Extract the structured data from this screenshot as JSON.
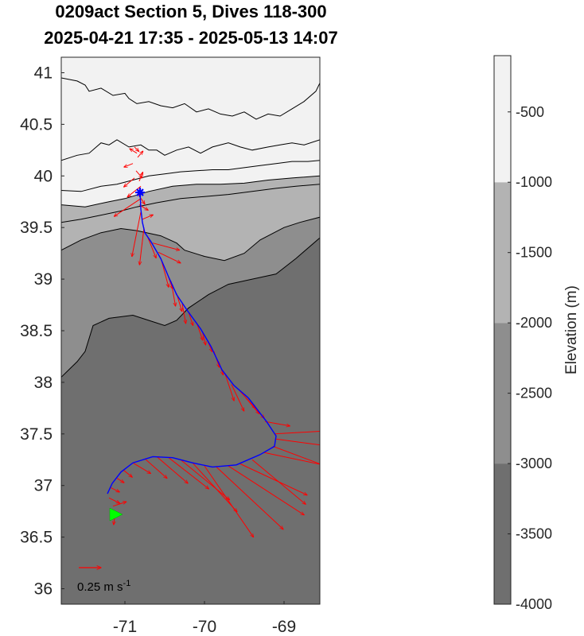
{
  "chart_data": {
    "type": "map",
    "title": "0209act Section 5, Dives 118-300",
    "subtitle": "2025-04-21 17:35 - 2025-05-13 14:07",
    "xlim": [
      -71.8,
      -68.55
    ],
    "ylim": [
      35.85,
      41.15
    ],
    "xticks": [
      -71,
      -70,
      -69
    ],
    "yticks": [
      36,
      36.5,
      37,
      37.5,
      38,
      38.5,
      39,
      39.5,
      40,
      40.5,
      41
    ],
    "colorbar": {
      "label": "Elevation (m)",
      "range": [
        -4000,
        -100
      ],
      "ticks": [
        -4000,
        -3500,
        -3000,
        -2500,
        -2000,
        -1500,
        -1000,
        -500
      ],
      "levels": [
        {
          "from": -4000,
          "to": -3000,
          "color": "#6f6f6f"
        },
        {
          "from": -3000,
          "to": -2000,
          "color": "#8e8e8e"
        },
        {
          "from": -2000,
          "to": -1000,
          "color": "#b3b3b3"
        },
        {
          "from": -1000,
          "to": -100,
          "color": "#f2f2f2"
        }
      ]
    },
    "depth_bands": [
      {
        "name": "-1000",
        "color": "#b3b3b3",
        "boundary": [
          [
            -71.8,
            39.72
          ],
          [
            -71.5,
            39.7
          ],
          [
            -71.2,
            39.75
          ],
          [
            -71,
            39.78
          ],
          [
            -70.7,
            39.85
          ],
          [
            -70.4,
            39.9
          ],
          [
            -70.1,
            39.92
          ],
          [
            -69.8,
            39.92
          ],
          [
            -69.5,
            39.93
          ],
          [
            -69.2,
            39.96
          ],
          [
            -68.9,
            39.98
          ],
          [
            -68.55,
            40.0
          ]
        ]
      },
      {
        "name": "-2000",
        "color": "#8e8e8e",
        "boundary": [
          [
            -71.8,
            39.28
          ],
          [
            -71.55,
            39.38
          ],
          [
            -71.3,
            39.45
          ],
          [
            -71.05,
            39.49
          ],
          [
            -70.85,
            39.47
          ],
          [
            -70.55,
            39.42
          ],
          [
            -70.35,
            39.35
          ],
          [
            -70.25,
            39.28
          ],
          [
            -70.0,
            39.22
          ],
          [
            -69.75,
            39.18
          ],
          [
            -69.5,
            39.25
          ],
          [
            -69.3,
            39.38
          ],
          [
            -69.0,
            39.5
          ],
          [
            -68.8,
            39.55
          ],
          [
            -68.55,
            39.6
          ]
        ]
      },
      {
        "name": "-3000",
        "color": "#6f6f6f",
        "boundary": [
          [
            -71.8,
            38.05
          ],
          [
            -71.6,
            38.2
          ],
          [
            -71.5,
            38.3
          ],
          [
            -71.4,
            38.55
          ],
          [
            -71.2,
            38.62
          ],
          [
            -70.9,
            38.65
          ],
          [
            -70.7,
            38.6
          ],
          [
            -70.5,
            38.55
          ],
          [
            -70.35,
            38.6
          ],
          [
            -70.2,
            38.72
          ],
          [
            -69.95,
            38.85
          ],
          [
            -69.7,
            38.95
          ],
          [
            -69.4,
            39.0
          ],
          [
            -69.1,
            39.05
          ],
          [
            -68.85,
            39.2
          ],
          [
            -68.55,
            39.4
          ]
        ]
      }
    ],
    "contours": [
      {
        "level": -500,
        "points": [
          [
            -71.8,
            40.15
          ],
          [
            -71.6,
            40.2
          ],
          [
            -71.45,
            40.22
          ],
          [
            -71.3,
            40.32
          ],
          [
            -71.2,
            40.3
          ],
          [
            -71.1,
            40.35
          ],
          [
            -70.95,
            40.28
          ],
          [
            -70.8,
            40.3
          ],
          [
            -70.7,
            40.25
          ],
          [
            -70.6,
            40.25
          ],
          [
            -70.5,
            40.2
          ],
          [
            -70.35,
            40.25
          ],
          [
            -70.2,
            40.28
          ],
          [
            -70.05,
            40.22
          ],
          [
            -69.9,
            40.28
          ],
          [
            -69.7,
            40.32
          ],
          [
            -69.55,
            40.28
          ],
          [
            -69.4,
            40.25
          ],
          [
            -69.2,
            40.28
          ],
          [
            -69.05,
            40.3
          ],
          [
            -68.9,
            40.32
          ],
          [
            -68.75,
            40.3
          ],
          [
            -68.55,
            40.35
          ]
        ]
      },
      {
        "level": -100,
        "points": [
          [
            -71.8,
            40.95
          ],
          [
            -71.6,
            40.92
          ],
          [
            -71.5,
            40.88
          ],
          [
            -71.45,
            40.82
          ],
          [
            -71.3,
            40.85
          ],
          [
            -71.15,
            40.78
          ],
          [
            -71.0,
            40.8
          ],
          [
            -70.95,
            40.75
          ],
          [
            -70.85,
            40.7
          ],
          [
            -70.7,
            40.72
          ],
          [
            -70.55,
            40.68
          ],
          [
            -70.4,
            40.66
          ],
          [
            -70.25,
            40.7
          ],
          [
            -70.1,
            40.62
          ],
          [
            -69.95,
            40.65
          ],
          [
            -69.8,
            40.6
          ],
          [
            -69.65,
            40.58
          ],
          [
            -69.5,
            40.62
          ],
          [
            -69.35,
            40.55
          ],
          [
            -69.2,
            40.6
          ],
          [
            -69.05,
            40.58
          ],
          [
            -68.9,
            40.65
          ],
          [
            -68.75,
            40.72
          ],
          [
            -68.6,
            40.82
          ],
          [
            -68.55,
            40.9
          ]
        ]
      },
      {
        "level": -1500,
        "points": [
          [
            -71.8,
            39.55
          ],
          [
            -71.55,
            39.58
          ],
          [
            -71.3,
            39.62
          ],
          [
            -71.05,
            39.66
          ],
          [
            -70.85,
            39.7
          ],
          [
            -70.6,
            39.74
          ],
          [
            -70.3,
            39.78
          ],
          [
            -70.0,
            39.8
          ],
          [
            -69.7,
            39.82
          ],
          [
            -69.4,
            39.85
          ],
          [
            -69.1,
            39.88
          ],
          [
            -68.85,
            39.9
          ],
          [
            -68.55,
            39.92
          ]
        ]
      },
      {
        "level": -800,
        "points": [
          [
            -71.8,
            39.86
          ],
          [
            -71.55,
            39.85
          ],
          [
            -71.3,
            39.9
          ],
          [
            -71.1,
            39.92
          ],
          [
            -70.9,
            39.96
          ],
          [
            -70.7,
            40.0
          ],
          [
            -70.5,
            40.02
          ],
          [
            -70.3,
            40.04
          ],
          [
            -70.1,
            40.05
          ],
          [
            -69.9,
            40.06
          ],
          [
            -69.7,
            40.06
          ],
          [
            -69.5,
            40.08
          ],
          [
            -69.3,
            40.1
          ],
          [
            -69.1,
            40.12
          ],
          [
            -68.9,
            40.14
          ],
          [
            -68.7,
            40.14
          ],
          [
            -68.55,
            40.15
          ]
        ]
      }
    ],
    "track": [
      [
        -71.22,
        36.92
      ],
      [
        -71.16,
        37.02
      ],
      [
        -71.05,
        37.13
      ],
      [
        -70.9,
        37.22
      ],
      [
        -70.65,
        37.28
      ],
      [
        -70.4,
        37.27
      ],
      [
        -70.15,
        37.22
      ],
      [
        -69.9,
        37.18
      ],
      [
        -69.6,
        37.2
      ],
      [
        -69.3,
        37.3
      ],
      [
        -69.12,
        37.38
      ],
      [
        -69.1,
        37.48
      ],
      [
        -69.22,
        37.62
      ],
      [
        -69.45,
        37.85
      ],
      [
        -69.63,
        37.97
      ],
      [
        -69.78,
        38.12
      ],
      [
        -69.92,
        38.35
      ],
      [
        -70.05,
        38.52
      ],
      [
        -70.22,
        38.7
      ],
      [
        -70.35,
        38.85
      ],
      [
        -70.45,
        39.02
      ],
      [
        -70.55,
        39.2
      ],
      [
        -70.67,
        39.36
      ],
      [
        -70.75,
        39.45
      ],
      [
        -70.78,
        39.55
      ],
      [
        -70.8,
        39.68
      ],
      [
        -70.81,
        39.85
      ]
    ],
    "start_marker": {
      "lon": -70.81,
      "lat": 39.84
    },
    "end_marker": {
      "lon": -71.12,
      "lat": 36.72
    },
    "velocity_vectors": [
      {
        "lon": -70.88,
        "lat": 40.28,
        "u": 0.05,
        "v": -0.05
      },
      {
        "lon": -70.85,
        "lat": 40.22,
        "u": -0.08,
        "v": 0.05
      },
      {
        "lon": -70.84,
        "lat": 40.18,
        "u": 0.06,
        "v": 0.07
      },
      {
        "lon": -70.9,
        "lat": 40.12,
        "u": -0.1,
        "v": -0.04
      },
      {
        "lon": -70.86,
        "lat": 40.05,
        "u": 0.07,
        "v": -0.08
      },
      {
        "lon": -70.88,
        "lat": 39.98,
        "u": -0.12,
        "v": -0.1
      },
      {
        "lon": -70.82,
        "lat": 39.95,
        "u": 0.04,
        "v": 0.1
      },
      {
        "lon": -70.8,
        "lat": 39.9,
        "u": -0.15,
        "v": -0.12
      },
      {
        "lon": -70.84,
        "lat": 39.83,
        "u": 0.08,
        "v": -0.12
      },
      {
        "lon": -70.8,
        "lat": 39.78,
        "u": -0.3,
        "v": -0.2
      },
      {
        "lon": -70.82,
        "lat": 39.72,
        "u": 0.1,
        "v": -0.06
      },
      {
        "lon": -70.8,
        "lat": 39.65,
        "u": -0.1,
        "v": -0.5
      },
      {
        "lon": -70.78,
        "lat": 39.58,
        "u": 0.12,
        "v": 0.05
      },
      {
        "lon": -70.76,
        "lat": 39.5,
        "u": -0.05,
        "v": -0.42
      },
      {
        "lon": -70.72,
        "lat": 39.42,
        "u": 0.1,
        "v": -0.25
      },
      {
        "lon": -70.65,
        "lat": 39.35,
        "u": 0.3,
        "v": -0.08
      },
      {
        "lon": -70.58,
        "lat": 39.26,
        "u": 0.25,
        "v": -0.12
      },
      {
        "lon": -70.54,
        "lat": 39.18,
        "u": 0.08,
        "v": -0.3
      },
      {
        "lon": -70.48,
        "lat": 39.08,
        "u": 0.07,
        "v": -0.2
      },
      {
        "lon": -70.42,
        "lat": 38.98,
        "u": 0.05,
        "v": -0.28
      },
      {
        "lon": -70.35,
        "lat": 38.86,
        "u": 0.06,
        "v": -0.2
      },
      {
        "lon": -70.28,
        "lat": 38.76,
        "u": 0.04,
        "v": -0.22
      },
      {
        "lon": -70.2,
        "lat": 38.68,
        "u": 0.05,
        "v": -0.15
      },
      {
        "lon": -70.1,
        "lat": 38.58,
        "u": 0.07,
        "v": -0.2
      },
      {
        "lon": -70.03,
        "lat": 38.5,
        "u": 0.04,
        "v": -0.16
      },
      {
        "lon": -69.96,
        "lat": 38.4,
        "u": 0.05,
        "v": -0.12
      },
      {
        "lon": -69.88,
        "lat": 38.3,
        "u": 0.06,
        "v": -0.18
      },
      {
        "lon": -69.82,
        "lat": 38.2,
        "u": 0.05,
        "v": -0.15
      },
      {
        "lon": -69.74,
        "lat": 38.08,
        "u": 0.1,
        "v": -0.3
      },
      {
        "lon": -69.66,
        "lat": 37.98,
        "u": 0.14,
        "v": -0.3
      },
      {
        "lon": -69.56,
        "lat": 37.92,
        "u": 0.18,
        "v": -0.2
      },
      {
        "lon": -69.48,
        "lat": 37.85,
        "u": 0.15,
        "v": -0.18
      },
      {
        "lon": -69.36,
        "lat": 37.74,
        "u": 0.1,
        "v": -0.1
      },
      {
        "lon": -69.24,
        "lat": 37.62,
        "u": 0.28,
        "v": -0.05
      },
      {
        "lon": -69.12,
        "lat": 37.5,
        "u": 0.7,
        "v": 0.04
      },
      {
        "lon": -69.1,
        "lat": 37.45,
        "u": 0.6,
        "v": -0.08
      },
      {
        "lon": -69.14,
        "lat": 37.38,
        "u": 0.8,
        "v": -0.3
      },
      {
        "lon": -69.25,
        "lat": 37.32,
        "u": 0.85,
        "v": -0.18
      },
      {
        "lon": -69.4,
        "lat": 37.25,
        "u": 0.6,
        "v": -0.5
      },
      {
        "lon": -69.55,
        "lat": 37.21,
        "u": 0.75,
        "v": -0.35
      },
      {
        "lon": -69.7,
        "lat": 37.19,
        "u": 0.85,
        "v": -0.55
      },
      {
        "lon": -69.85,
        "lat": 37.18,
        "u": 0.75,
        "v": -0.7
      },
      {
        "lon": -70.0,
        "lat": 37.19,
        "u": 0.55,
        "v": -0.8
      },
      {
        "lon": -70.15,
        "lat": 37.22,
        "u": 0.5,
        "v": -0.55
      },
      {
        "lon": -70.3,
        "lat": 37.25,
        "u": 0.55,
        "v": -0.45
      },
      {
        "lon": -70.45,
        "lat": 37.27,
        "u": 0.45,
        "v": -0.35
      },
      {
        "lon": -70.6,
        "lat": 37.28,
        "u": 0.35,
        "v": -0.3
      },
      {
        "lon": -70.75,
        "lat": 37.26,
        "u": 0.25,
        "v": -0.22
      },
      {
        "lon": -70.9,
        "lat": 37.22,
        "u": 0.2,
        "v": -0.12
      },
      {
        "lon": -71.02,
        "lat": 37.15,
        "u": 0.1,
        "v": -0.08
      },
      {
        "lon": -71.1,
        "lat": 37.07,
        "u": 0.08,
        "v": -0.05
      },
      {
        "lon": -71.18,
        "lat": 36.98,
        "u": 0.1,
        "v": -0.05
      },
      {
        "lon": -71.2,
        "lat": 36.88,
        "u": 0.12,
        "v": -0.06
      },
      {
        "lon": -71.15,
        "lat": 36.8,
        "u": 0.15,
        "v": 0.05
      },
      {
        "lon": -71.12,
        "lat": 36.75,
        "u": -0.02,
        "v": -0.15
      }
    ],
    "vector_key": {
      "label": "0.25 m s",
      "superscript": "-1",
      "magnitude": 0.25
    }
  }
}
